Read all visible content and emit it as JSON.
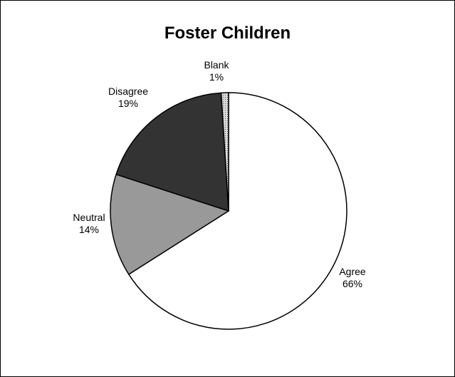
{
  "chart_data": {
    "type": "pie",
    "title": "Foster Children",
    "slices": [
      {
        "label": "Agree",
        "value": 66,
        "percent_label": "66%",
        "color": "#ffffff"
      },
      {
        "label": "Neutral",
        "value": 14,
        "percent_label": "14%",
        "color": "#999999"
      },
      {
        "label": "Disagree",
        "value": 19,
        "percent_label": "19%",
        "color": "#333333"
      },
      {
        "label": "Blank",
        "value": 1,
        "percent_label": "1%",
        "color": "#c8c8c8"
      }
    ],
    "outline_color": "#000000",
    "legend": "none"
  }
}
